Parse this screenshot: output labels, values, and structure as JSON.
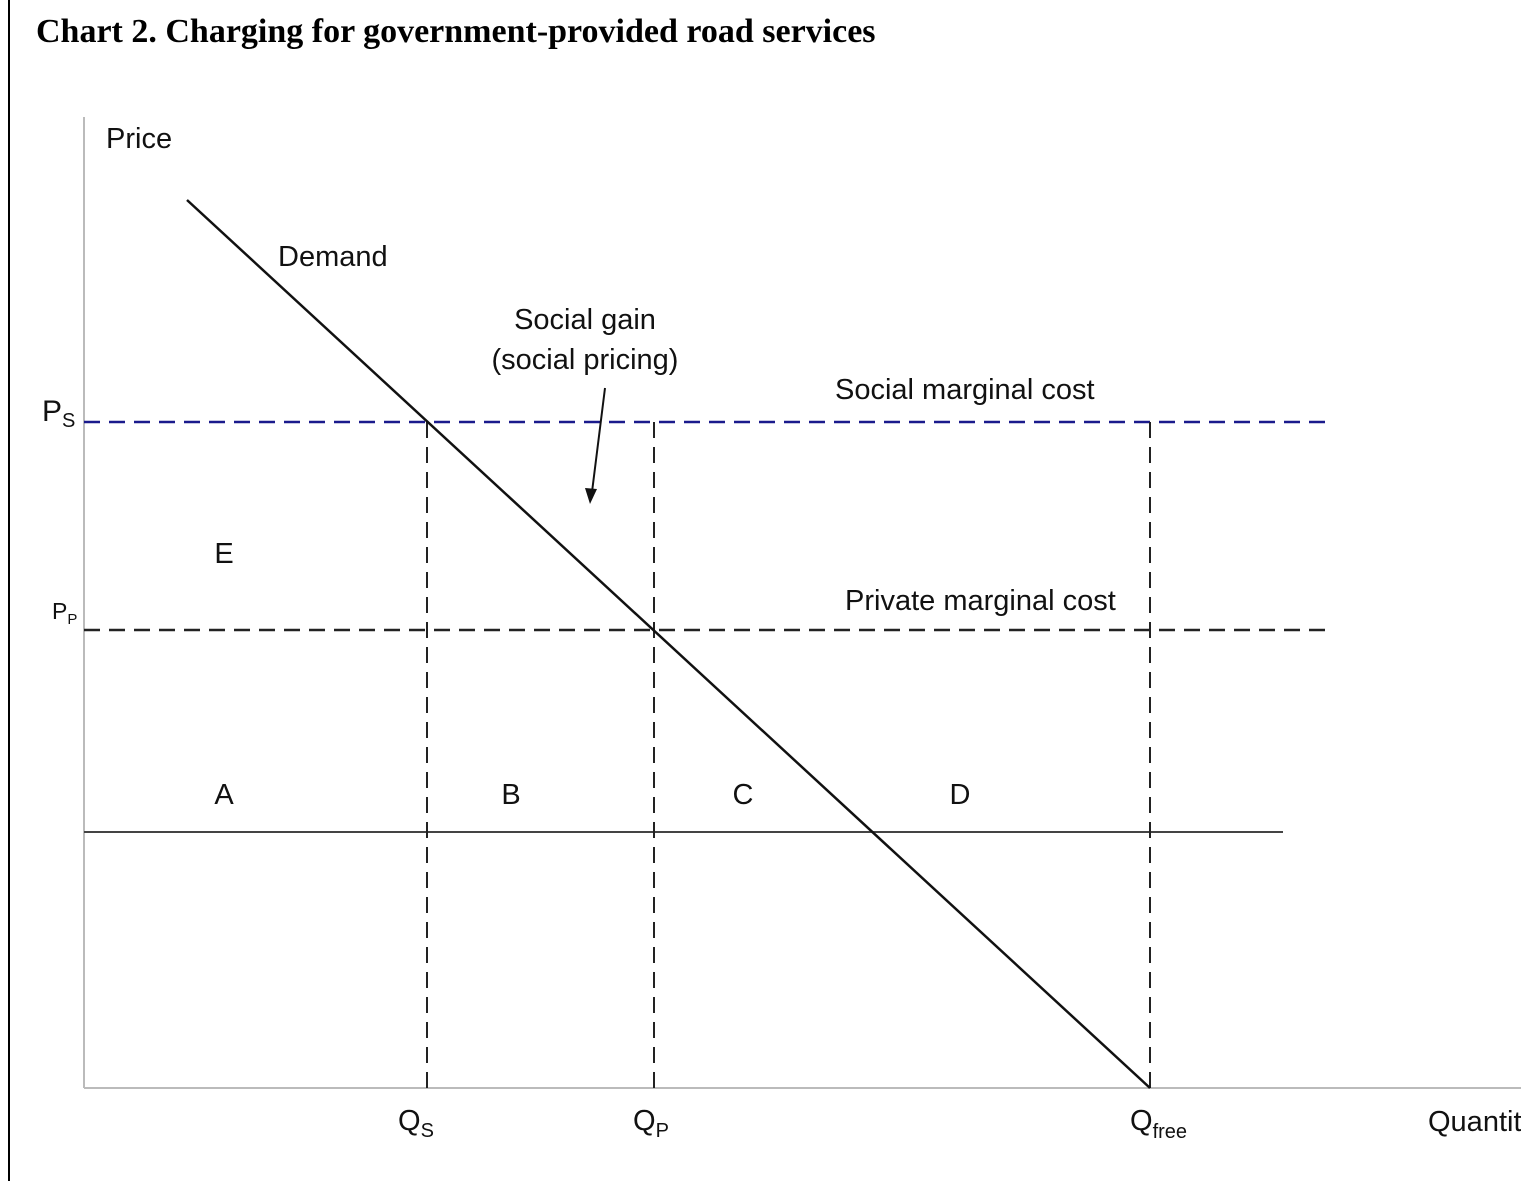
{
  "title": "Chart 2. Charging for government-provided road services",
  "axes": {
    "y_label": "Price",
    "x_label": "Quantity"
  },
  "curves": {
    "demand": "Demand",
    "social_cost": "Social marginal cost",
    "private_cost": "Private marginal cost"
  },
  "annotation": {
    "line1": "Social gain",
    "line2": "(social pricing)"
  },
  "price_ticks": [
    {
      "main": "P",
      "sub": "S"
    },
    {
      "main": "P",
      "sub": "P"
    }
  ],
  "quantity_ticks": [
    {
      "main": "Q",
      "sub": "S"
    },
    {
      "main": "Q",
      "sub": "P"
    },
    {
      "main": "Q",
      "sub": "free"
    }
  ],
  "regions": [
    "E",
    "A",
    "B",
    "C",
    "D"
  ]
}
